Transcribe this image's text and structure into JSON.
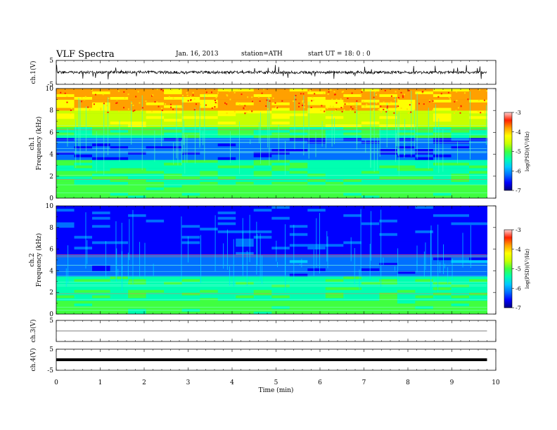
{
  "header": {
    "title": "VLF  Spectra",
    "date": "Jan. 16, 2013",
    "station": "station=ATH",
    "start": "start  UT  =    18: 0  : 0"
  },
  "colors": {
    "spectrum_ramp": [
      "#000080",
      "#0000ff",
      "#0070ff",
      "#00c8ff",
      "#00ffb0",
      "#40ff40",
      "#c8ff00",
      "#ffff00",
      "#ffa000",
      "#ff2000",
      "#ffd0d0"
    ]
  },
  "chart_data": [
    {
      "type": "line",
      "panel": "ch1",
      "ylabel": "ch.1(V)",
      "ylim": [
        -5,
        5
      ],
      "yticks": [
        "5",
        "-5"
      ],
      "xlim": [
        0,
        10
      ],
      "baseline": 0,
      "trace_style": "noisy"
    },
    {
      "type": "heatmap",
      "panel": "ch1-spectrogram",
      "ylabel_top": "ch.1",
      "ylabel": "Frequency  (kHz)",
      "ylim": [
        0,
        10
      ],
      "yticks": [
        "0",
        "2",
        "4",
        "6",
        "8",
        "10"
      ],
      "xlim": [
        0,
        10
      ],
      "data_end_min": 9.8,
      "colorbar": {
        "label": "log(PSD)(V²/Hz)",
        "range": [
          -7,
          -3
        ],
        "ticks": [
          "-3",
          "-4",
          "-5",
          "-6",
          "-7"
        ]
      }
    },
    {
      "type": "heatmap",
      "panel": "ch2-spectrogram",
      "ylabel_top": "ch.2",
      "ylabel": "Frequency  (kHz)",
      "ylim": [
        0,
        10
      ],
      "yticks": [
        "0",
        "2",
        "4",
        "6",
        "8",
        "10"
      ],
      "xlim": [
        0,
        10
      ],
      "data_end_min": 9.8,
      "colorbar": {
        "label": "log(PSD)(V²/Hz)",
        "range": [
          -7,
          -3
        ],
        "ticks": [
          "-3",
          "-4",
          "-5",
          "-6",
          "-7"
        ]
      }
    },
    {
      "type": "line",
      "panel": "ch3",
      "ylabel": "ch.3(V)",
      "ylim": [
        -5,
        5
      ],
      "yticks": [
        "5"
      ],
      "xlim": [
        0,
        10
      ],
      "baseline": 0,
      "trace_style": "flat"
    },
    {
      "type": "line",
      "panel": "ch4",
      "ylabel": "ch.4(V)",
      "ylim": [
        -5,
        5
      ],
      "yticks": [
        "5",
        "-5"
      ],
      "xlim": [
        0,
        10
      ],
      "baseline": 0,
      "trace_style": "thick"
    }
  ],
  "xaxis": {
    "label": "Time  (min)",
    "ticks": [
      "0",
      "1",
      "2",
      "3",
      "4",
      "5",
      "6",
      "7",
      "8",
      "9",
      "10"
    ]
  }
}
